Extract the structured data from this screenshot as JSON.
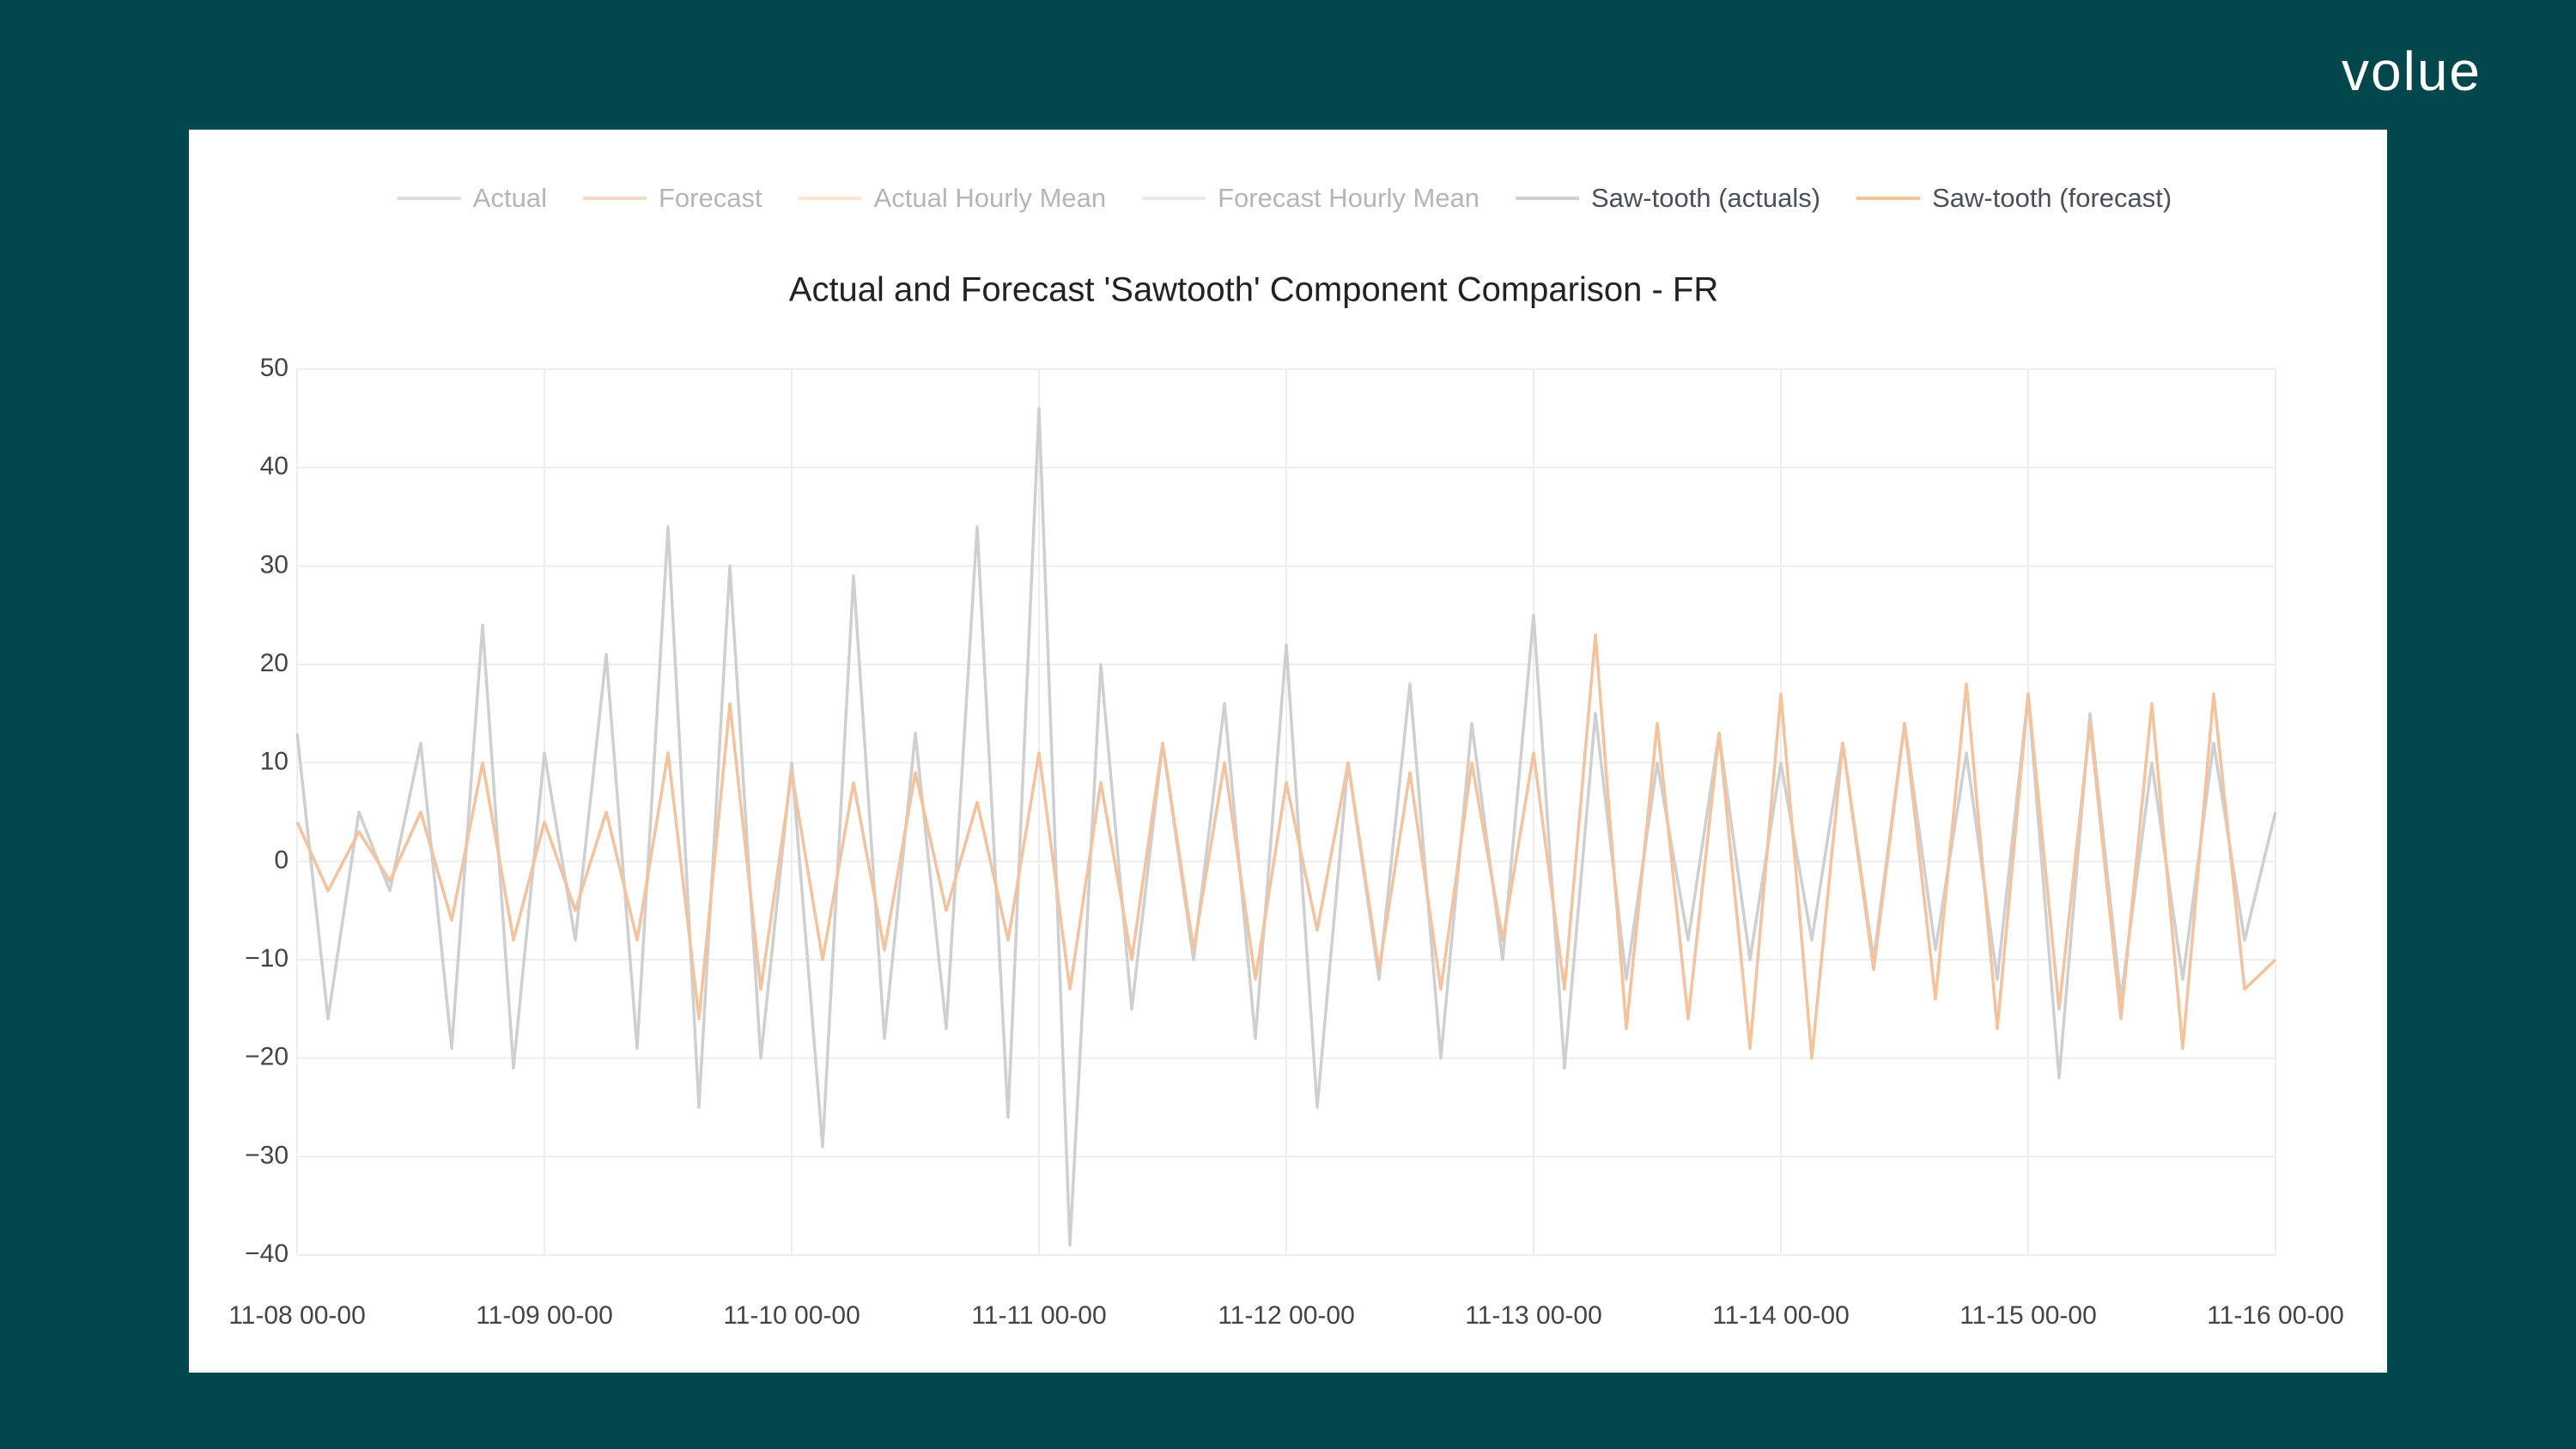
{
  "logo": "volue",
  "chart_data": {
    "type": "line",
    "title": "Actual and Forecast 'Sawtooth' Component Comparison - FR",
    "x": [
      "11-08 00-00",
      "11-08 03-00",
      "11-08 06-00",
      "11-08 09-00",
      "11-08 12-00",
      "11-08 15-00",
      "11-08 18-00",
      "11-08 21-00",
      "11-09 00-00",
      "11-09 03-00",
      "11-09 06-00",
      "11-09 09-00",
      "11-09 12-00",
      "11-09 15-00",
      "11-09 18-00",
      "11-09 21-00",
      "11-10 00-00",
      "11-10 03-00",
      "11-10 06-00",
      "11-10 09-00",
      "11-10 12-00",
      "11-10 15-00",
      "11-10 18-00",
      "11-10 21-00",
      "11-11 00-00",
      "11-11 03-00",
      "11-11 06-00",
      "11-11 09-00",
      "11-11 12-00",
      "11-11 15-00",
      "11-11 18-00",
      "11-11 21-00",
      "11-12 00-00",
      "11-12 03-00",
      "11-12 06-00",
      "11-12 09-00",
      "11-12 12-00",
      "11-12 15-00",
      "11-12 18-00",
      "11-12 21-00",
      "11-13 00-00",
      "11-13 03-00",
      "11-13 06-00",
      "11-13 09-00",
      "11-13 12-00",
      "11-13 15-00",
      "11-13 18-00",
      "11-13 21-00",
      "11-14 00-00",
      "11-14 03-00",
      "11-14 06-00",
      "11-14 09-00",
      "11-14 12-00",
      "11-14 15-00",
      "11-14 18-00",
      "11-14 21-00",
      "11-15 00-00",
      "11-15 03-00",
      "11-15 06-00",
      "11-15 09-00",
      "11-15 12-00",
      "11-15 15-00",
      "11-15 18-00",
      "11-15 21-00",
      "11-16 00-00"
    ],
    "xlim": [
      "11-08 00-00",
      "11-16 00-00"
    ],
    "xticks": [
      "11-08 00-00",
      "11-09 00-00",
      "11-10 00-00",
      "11-11 00-00",
      "11-12 00-00",
      "11-13 00-00",
      "11-14 00-00",
      "11-15 00-00",
      "11-16 00-00"
    ],
    "ylim": [
      -40,
      50
    ],
    "yticks": [
      {
        "value": -40,
        "label": "−40"
      },
      {
        "value": -30,
        "label": "−30"
      },
      {
        "value": -20,
        "label": "−20"
      },
      {
        "value": -10,
        "label": "−10"
      },
      0,
      10,
      20,
      30,
      40,
      50
    ],
    "grid": true,
    "series": [
      {
        "name": "Actual",
        "color": "#c8c8c8",
        "visible": "legendonly"
      },
      {
        "name": "Forecast",
        "color": "#f6c29b",
        "visible": "legendonly"
      },
      {
        "name": "Actual Hourly Mean",
        "color": "#f9d6b9",
        "visible": "legendonly"
      },
      {
        "name": "Forecast Hourly Mean",
        "color": "#dcdcdc",
        "visible": "legendonly"
      },
      {
        "name": "Saw-tooth (actuals)",
        "color": "#cfcfcf",
        "visible": true,
        "values": [
          13,
          -16,
          5,
          -3,
          12,
          -19,
          24,
          -21,
          11,
          -8,
          21,
          -19,
          34,
          -25,
          30,
          -20,
          10,
          -29,
          29,
          -18,
          13,
          -17,
          34,
          -26,
          46,
          -39,
          20,
          -15,
          12,
          -10,
          16,
          -18,
          22,
          -25,
          10,
          -12,
          18,
          -20,
          14,
          -10,
          25,
          -21,
          15,
          -12,
          10,
          -8,
          13,
          -10,
          10,
          -8,
          12,
          -10,
          14,
          -9,
          11,
          -12,
          17,
          -22,
          15,
          -14,
          10,
          -12,
          12,
          -8,
          5
        ]
      },
      {
        "name": "Saw-tooth (forecast)",
        "color": "#f4c29c",
        "visible": true,
        "values": [
          4,
          -3,
          3,
          -2,
          5,
          -6,
          10,
          -8,
          4,
          -5,
          5,
          -8,
          11,
          -16,
          16,
          -13,
          9,
          -10,
          8,
          -9,
          9,
          -5,
          6,
          -8,
          11,
          -13,
          8,
          -10,
          12,
          -9,
          10,
          -12,
          8,
          -7,
          10,
          -11,
          9,
          -13,
          10,
          -8,
          11,
          -13,
          23,
          -17,
          14,
          -16,
          13,
          -19,
          17,
          -20,
          12,
          -11,
          14,
          -14,
          18,
          -17,
          17,
          -15,
          14,
          -16,
          16,
          -19,
          17,
          -13,
          -10
        ]
      }
    ]
  }
}
